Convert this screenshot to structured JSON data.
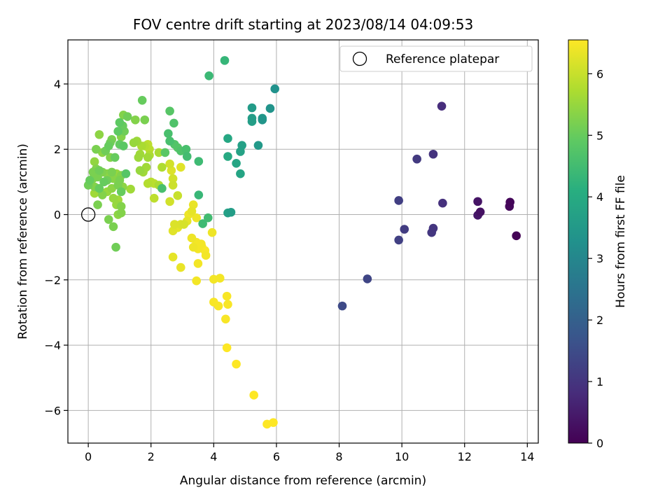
{
  "chart_data": {
    "type": "scatter",
    "title": "FOV centre drift starting at 2023/08/14 04:09:53",
    "xlabel": "Angular distance from reference (arcmin)",
    "ylabel": "Rotation from reference (arcmin)",
    "xlim": [
      -0.65,
      14.35
    ],
    "ylim": [
      -7.0,
      5.35
    ],
    "xticks": [
      0,
      2,
      4,
      6,
      8,
      10,
      12,
      14
    ],
    "yticks": [
      -6,
      -4,
      -2,
      0,
      2,
      4
    ],
    "grid": true,
    "legend": {
      "placement": "top-right",
      "entries": [
        {
          "label": "Reference platepar",
          "marker": "open-circle"
        }
      ]
    },
    "reference_point": {
      "x": 0,
      "y": 0
    },
    "colorbar": {
      "label": "Hours from first FF file",
      "colormap": "viridis",
      "range": [
        0,
        6.55
      ],
      "ticks": [
        0,
        1,
        2,
        3,
        4,
        5,
        6
      ]
    },
    "points": [
      {
        "x": 13.65,
        "y": -0.65,
        "t": 0.05
      },
      {
        "x": 13.45,
        "y": 0.38,
        "t": 0.1
      },
      {
        "x": 13.43,
        "y": 0.25,
        "t": 0.15
      },
      {
        "x": 12.5,
        "y": 0.08,
        "t": 0.3
      },
      {
        "x": 12.42,
        "y": 0.4,
        "t": 0.35
      },
      {
        "x": 12.42,
        "y": -0.02,
        "t": 0.4
      },
      {
        "x": 11.27,
        "y": 3.32,
        "t": 0.85
      },
      {
        "x": 11.3,
        "y": 0.35,
        "t": 0.9
      },
      {
        "x": 11.0,
        "y": 1.85,
        "t": 0.95
      },
      {
        "x": 11.0,
        "y": -0.42,
        "t": 1.0
      },
      {
        "x": 10.95,
        "y": -0.55,
        "t": 1.05
      },
      {
        "x": 10.48,
        "y": 1.7,
        "t": 1.1
      },
      {
        "x": 10.08,
        "y": -0.45,
        "t": 1.15
      },
      {
        "x": 9.9,
        "y": 0.43,
        "t": 1.2
      },
      {
        "x": 9.9,
        "y": -0.78,
        "t": 1.25
      },
      {
        "x": 8.9,
        "y": -1.97,
        "t": 1.35
      },
      {
        "x": 8.1,
        "y": -2.8,
        "t": 1.45
      },
      {
        "x": 5.95,
        "y": 3.85,
        "t": 3.3
      },
      {
        "x": 5.8,
        "y": 3.25,
        "t": 3.35
      },
      {
        "x": 5.55,
        "y": 2.9,
        "t": 3.4
      },
      {
        "x": 5.55,
        "y": 2.95,
        "t": 3.45
      },
      {
        "x": 5.42,
        "y": 2.12,
        "t": 3.5
      },
      {
        "x": 5.22,
        "y": 3.27,
        "t": 3.55
      },
      {
        "x": 5.22,
        "y": 2.95,
        "t": 3.6
      },
      {
        "x": 5.22,
        "y": 2.85,
        "t": 3.65
      },
      {
        "x": 4.9,
        "y": 2.12,
        "t": 3.7
      },
      {
        "x": 4.85,
        "y": 1.93,
        "t": 3.75
      },
      {
        "x": 4.85,
        "y": 1.25,
        "t": 3.8
      },
      {
        "x": 4.72,
        "y": 1.57,
        "t": 3.85
      },
      {
        "x": 4.45,
        "y": 2.33,
        "t": 3.9
      },
      {
        "x": 4.45,
        "y": 1.78,
        "t": 3.95
      },
      {
        "x": 4.55,
        "y": 0.07,
        "t": 3.6
      },
      {
        "x": 4.45,
        "y": 0.05,
        "t": 3.7
      },
      {
        "x": 4.35,
        "y": 4.72,
        "t": 4.3
      },
      {
        "x": 3.85,
        "y": 4.25,
        "t": 4.4
      },
      {
        "x": 3.82,
        "y": -0.1,
        "t": 4.5
      },
      {
        "x": 3.65,
        "y": -0.28,
        "t": 4.45
      },
      {
        "x": 3.52,
        "y": 0.6,
        "t": 4.35
      },
      {
        "x": 3.52,
        "y": 1.63,
        "t": 4.45
      },
      {
        "x": 3.15,
        "y": 1.78,
        "t": 4.5
      },
      {
        "x": 3.12,
        "y": 2.0,
        "t": 4.6
      },
      {
        "x": 2.95,
        "y": 1.95,
        "t": 4.7
      },
      {
        "x": 2.85,
        "y": 2.05,
        "t": 4.8
      },
      {
        "x": 2.75,
        "y": 2.15,
        "t": 4.75
      },
      {
        "x": 2.73,
        "y": 2.8,
        "t": 4.7
      },
      {
        "x": 2.6,
        "y": 3.17,
        "t": 4.8
      },
      {
        "x": 2.55,
        "y": 2.48,
        "t": 4.6
      },
      {
        "x": 2.6,
        "y": 2.25,
        "t": 4.6
      },
      {
        "x": 2.45,
        "y": 1.9,
        "t": 4.85
      },
      {
        "x": 2.35,
        "y": 0.8,
        "t": 4.6
      },
      {
        "x": 1.72,
        "y": 3.5,
        "t": 5.0
      },
      {
        "x": 1.8,
        "y": 2.9,
        "t": 5.2
      },
      {
        "x": 1.5,
        "y": 2.9,
        "t": 5.3
      },
      {
        "x": 1.12,
        "y": 3.05,
        "t": 5.3
      },
      {
        "x": 1.25,
        "y": 3.0,
        "t": 5.1
      },
      {
        "x": 1.0,
        "y": 2.82,
        "t": 4.9
      },
      {
        "x": 1.1,
        "y": 2.72,
        "t": 5.0
      },
      {
        "x": 1.15,
        "y": 2.55,
        "t": 5.1
      },
      {
        "x": 0.95,
        "y": 2.55,
        "t": 4.9
      },
      {
        "x": 1.05,
        "y": 2.38,
        "t": 5.3
      },
      {
        "x": 0.75,
        "y": 2.3,
        "t": 5.2
      },
      {
        "x": 0.7,
        "y": 2.2,
        "t": 5.1
      },
      {
        "x": 0.65,
        "y": 2.1,
        "t": 5.0
      },
      {
        "x": 1.0,
        "y": 2.15,
        "t": 4.95
      },
      {
        "x": 1.12,
        "y": 2.1,
        "t": 4.85
      },
      {
        "x": 0.35,
        "y": 2.45,
        "t": 5.4
      },
      {
        "x": 0.25,
        "y": 2.0,
        "t": 5.2
      },
      {
        "x": 0.45,
        "y": 1.9,
        "t": 5.4
      },
      {
        "x": 0.55,
        "y": 1.95,
        "t": 5.1
      },
      {
        "x": 0.7,
        "y": 1.75,
        "t": 5.3
      },
      {
        "x": 0.85,
        "y": 1.75,
        "t": 5.0
      },
      {
        "x": 0.2,
        "y": 1.62,
        "t": 5.45
      },
      {
        "x": 0.25,
        "y": 1.4,
        "t": 5.3
      },
      {
        "x": 0.15,
        "y": 1.3,
        "t": 5.2
      },
      {
        "x": 0.35,
        "y": 1.35,
        "t": 5.1
      },
      {
        "x": 0.45,
        "y": 1.3,
        "t": 5.25
      },
      {
        "x": 0.6,
        "y": 1.25,
        "t": 5.4
      },
      {
        "x": 0.75,
        "y": 1.3,
        "t": 5.2
      },
      {
        "x": 0.9,
        "y": 1.25,
        "t": 5.5
      },
      {
        "x": 1.05,
        "y": 1.2,
        "t": 5.3
      },
      {
        "x": 1.2,
        "y": 1.25,
        "t": 4.8
      },
      {
        "x": 0.05,
        "y": 1.05,
        "t": 5.0
      },
      {
        "x": 0.15,
        "y": 1.1,
        "t": 5.3
      },
      {
        "x": 0.3,
        "y": 1.15,
        "t": 5.2
      },
      {
        "x": 0.5,
        "y": 1.0,
        "t": 5.0
      },
      {
        "x": 0.6,
        "y": 1.05,
        "t": 5.1
      },
      {
        "x": 0.8,
        "y": 1.1,
        "t": 5.35
      },
      {
        "x": 1.0,
        "y": 1.05,
        "t": 5.2
      },
      {
        "x": 0.0,
        "y": 0.9,
        "t": 5.1
      },
      {
        "x": 0.2,
        "y": 0.85,
        "t": 5.3
      },
      {
        "x": 0.35,
        "y": 0.8,
        "t": 5.0
      },
      {
        "x": 0.75,
        "y": 0.8,
        "t": 5.4
      },
      {
        "x": 0.95,
        "y": 0.9,
        "t": 5.2
      },
      {
        "x": 1.1,
        "y": 0.85,
        "t": 5.4
      },
      {
        "x": 1.35,
        "y": 0.78,
        "t": 5.6
      },
      {
        "x": 0.2,
        "y": 0.65,
        "t": 5.6
      },
      {
        "x": 0.45,
        "y": 0.6,
        "t": 5.3
      },
      {
        "x": 0.6,
        "y": 0.7,
        "t": 5.5
      },
      {
        "x": 1.05,
        "y": 0.7,
        "t": 5.0
      },
      {
        "x": 0.8,
        "y": 0.5,
        "t": 5.5
      },
      {
        "x": 0.95,
        "y": 0.45,
        "t": 5.6
      },
      {
        "x": 1.05,
        "y": 0.25,
        "t": 5.3
      },
      {
        "x": 0.3,
        "y": 0.3,
        "t": 5.2
      },
      {
        "x": 0.9,
        "y": 0.3,
        "t": 5.5
      },
      {
        "x": 0.95,
        "y": 0.0,
        "t": 5.4
      },
      {
        "x": 1.05,
        "y": 0.05,
        "t": 5.3
      },
      {
        "x": 0.65,
        "y": -0.15,
        "t": 5.2
      },
      {
        "x": 0.8,
        "y": -0.37,
        "t": 5.2
      },
      {
        "x": 0.88,
        "y": -1.0,
        "t": 5.1
      },
      {
        "x": 1.45,
        "y": 2.2,
        "t": 5.5
      },
      {
        "x": 1.55,
        "y": 2.25,
        "t": 5.55
      },
      {
        "x": 1.7,
        "y": 2.1,
        "t": 5.7
      },
      {
        "x": 1.8,
        "y": 2.1,
        "t": 5.8
      },
      {
        "x": 1.9,
        "y": 2.15,
        "t": 5.9
      },
      {
        "x": 1.95,
        "y": 2.0,
        "t": 5.85
      },
      {
        "x": 1.65,
        "y": 1.85,
        "t": 5.6
      },
      {
        "x": 1.6,
        "y": 1.75,
        "t": 5.55
      },
      {
        "x": 1.9,
        "y": 1.75,
        "t": 5.6
      },
      {
        "x": 1.95,
        "y": 1.82,
        "t": 5.75
      },
      {
        "x": 2.25,
        "y": 1.9,
        "t": 5.7
      },
      {
        "x": 1.65,
        "y": 1.35,
        "t": 5.5
      },
      {
        "x": 1.75,
        "y": 1.3,
        "t": 5.6
      },
      {
        "x": 1.85,
        "y": 1.45,
        "t": 5.6
      },
      {
        "x": 2.35,
        "y": 1.45,
        "t": 5.75
      },
      {
        "x": 2.6,
        "y": 1.55,
        "t": 6.1
      },
      {
        "x": 2.65,
        "y": 1.35,
        "t": 6.2
      },
      {
        "x": 2.95,
        "y": 1.45,
        "t": 6.25
      },
      {
        "x": 2.7,
        "y": 1.1,
        "t": 6.1
      },
      {
        "x": 2.7,
        "y": 0.9,
        "t": 6.05
      },
      {
        "x": 2.0,
        "y": 1.0,
        "t": 5.85
      },
      {
        "x": 1.9,
        "y": 0.95,
        "t": 5.8
      },
      {
        "x": 2.1,
        "y": 0.95,
        "t": 5.9
      },
      {
        "x": 2.25,
        "y": 0.9,
        "t": 5.7
      },
      {
        "x": 2.85,
        "y": 0.58,
        "t": 6.0
      },
      {
        "x": 2.6,
        "y": 0.4,
        "t": 6.1
      },
      {
        "x": 2.1,
        "y": 0.5,
        "t": 5.9
      },
      {
        "x": 3.35,
        "y": 0.3,
        "t": 6.35
      },
      {
        "x": 3.3,
        "y": 0.1,
        "t": 6.3
      },
      {
        "x": 3.2,
        "y": 0.0,
        "t": 6.4
      },
      {
        "x": 3.45,
        "y": -0.1,
        "t": 6.4
      },
      {
        "x": 3.15,
        "y": -0.2,
        "t": 6.3
      },
      {
        "x": 2.95,
        "y": -0.3,
        "t": 6.2
      },
      {
        "x": 2.75,
        "y": -0.3,
        "t": 6.2
      },
      {
        "x": 2.85,
        "y": -0.4,
        "t": 6.3
      },
      {
        "x": 2.7,
        "y": -0.5,
        "t": 6.25
      },
      {
        "x": 3.05,
        "y": -0.3,
        "t": 6.15
      },
      {
        "x": 3.3,
        "y": -0.72,
        "t": 6.4
      },
      {
        "x": 3.45,
        "y": -0.85,
        "t": 6.45
      },
      {
        "x": 3.35,
        "y": -1.0,
        "t": 6.4
      },
      {
        "x": 3.5,
        "y": -1.05,
        "t": 6.45
      },
      {
        "x": 3.62,
        "y": -0.98,
        "t": 6.5
      },
      {
        "x": 3.6,
        "y": -0.9,
        "t": 6.45
      },
      {
        "x": 3.72,
        "y": -1.1,
        "t": 6.5
      },
      {
        "x": 3.75,
        "y": -1.25,
        "t": 6.45
      },
      {
        "x": 3.5,
        "y": -1.5,
        "t": 6.45
      },
      {
        "x": 3.95,
        "y": -0.55,
        "t": 6.4
      },
      {
        "x": 2.7,
        "y": -1.3,
        "t": 6.3
      },
      {
        "x": 2.95,
        "y": -1.62,
        "t": 6.35
      },
      {
        "x": 3.45,
        "y": -2.03,
        "t": 6.45
      },
      {
        "x": 4.0,
        "y": -1.98,
        "t": 6.45
      },
      {
        "x": 4.2,
        "y": -1.95,
        "t": 6.45
      },
      {
        "x": 4.0,
        "y": -2.68,
        "t": 6.5
      },
      {
        "x": 4.15,
        "y": -2.8,
        "t": 6.5
      },
      {
        "x": 4.42,
        "y": -2.5,
        "t": 6.5
      },
      {
        "x": 4.45,
        "y": -2.75,
        "t": 6.5
      },
      {
        "x": 4.38,
        "y": -3.2,
        "t": 6.5
      },
      {
        "x": 4.42,
        "y": -4.08,
        "t": 6.55
      },
      {
        "x": 4.72,
        "y": -4.58,
        "t": 6.55
      },
      {
        "x": 5.28,
        "y": -5.53,
        "t": 6.55
      },
      {
        "x": 5.7,
        "y": -6.42,
        "t": 6.55
      },
      {
        "x": 5.9,
        "y": -6.37,
        "t": 6.55
      }
    ]
  }
}
